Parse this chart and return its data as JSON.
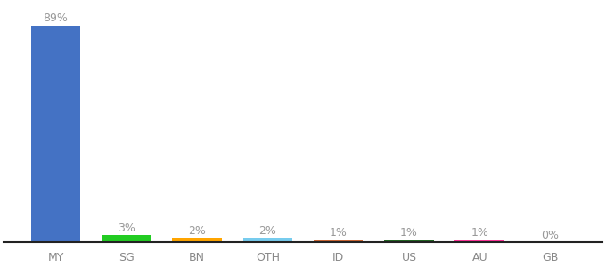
{
  "categories": [
    "MY",
    "SG",
    "BN",
    "OTH",
    "ID",
    "US",
    "AU",
    "GB"
  ],
  "values": [
    89,
    3,
    2,
    2,
    1,
    1,
    1,
    0
  ],
  "labels": [
    "89%",
    "3%",
    "2%",
    "2%",
    "1%",
    "1%",
    "1%",
    "0%"
  ],
  "bar_colors": [
    "#4472C4",
    "#22CC22",
    "#FFA500",
    "#77CCEE",
    "#CC6633",
    "#226622",
    "#FF3399",
    "#993333"
  ],
  "ylim": [
    0,
    98
  ],
  "background_color": "#ffffff",
  "label_fontsize": 9,
  "tick_fontsize": 9,
  "label_color": "#999999",
  "tick_color": "#888888"
}
